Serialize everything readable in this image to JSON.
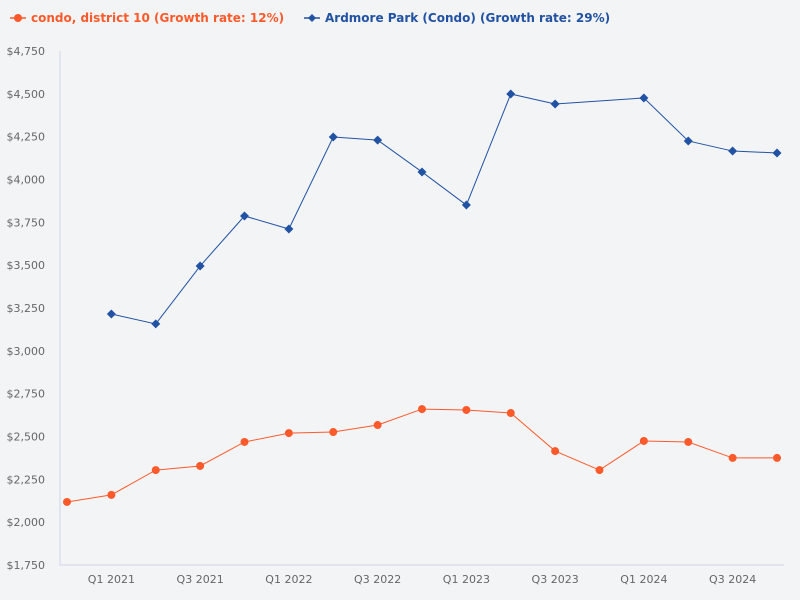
{
  "chart_data": {
    "type": "line",
    "title": "",
    "xlabel": "",
    "ylabel": "",
    "ylim": [
      1750,
      4750
    ],
    "yticks": [
      "$1,750",
      "$2,000",
      "$2,250",
      "$2,500",
      "$2,750",
      "$3,000",
      "$3,250",
      "$3,500",
      "$3,750",
      "$4,000",
      "$4,250",
      "$4,500",
      "$4,750"
    ],
    "ytick_values": [
      1750,
      2000,
      2250,
      2500,
      2750,
      3000,
      3250,
      3500,
      3750,
      4000,
      4250,
      4500,
      4750
    ],
    "x": [
      "Q4 2020",
      "Q1 2021",
      "Q2 2021",
      "Q3 2021",
      "Q4 2021",
      "Q1 2022",
      "Q2 2022",
      "Q3 2022",
      "Q4 2022",
      "Q1 2023",
      "Q2 2023",
      "Q3 2023",
      "Q4 2023",
      "Q1 2024",
      "Q2 2024",
      "Q3 2024",
      "Q4 2024"
    ],
    "xtick_labels": [
      "Q1 2021",
      "Q3 2021",
      "Q1 2022",
      "Q3 2022",
      "Q1 2023",
      "Q3 2023",
      "Q1 2024",
      "Q3 2024"
    ],
    "grid": false,
    "legend_placement": "top-left",
    "series": [
      {
        "name": "condo, district 10 (Growth rate: 12%)",
        "color": "#fc5a2b",
        "marker": "circle",
        "values": [
          2118,
          2159,
          2304,
          2328,
          2468,
          2520,
          2526,
          2567,
          2660,
          2655,
          2637,
          2415,
          2304,
          2474,
          2468,
          2375,
          2375
        ]
      },
      {
        "name": "Ardmore Park (Condo) (Growth rate: 29%)",
        "color": "#2152a3",
        "marker": "diamond",
        "values": [
          null,
          3215,
          3157,
          3495,
          3787,
          3711,
          4248,
          4230,
          4044,
          3851,
          4499,
          4441,
          null,
          4476,
          4225,
          4166,
          4155
        ]
      }
    ]
  }
}
